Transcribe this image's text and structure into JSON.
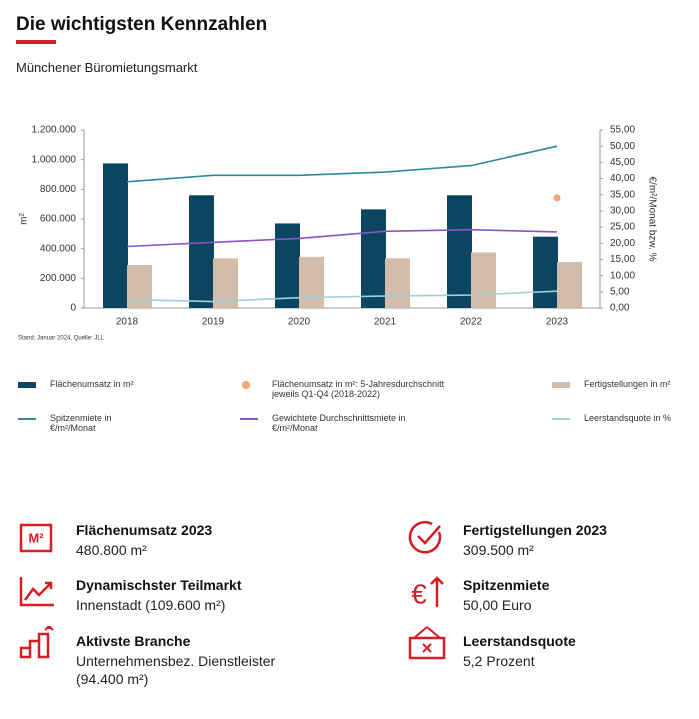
{
  "header": {
    "title": "Die wichtigsten Kennzahlen",
    "subtitle": "Münchener Büromietungsmarkt"
  },
  "chart_data": {
    "type": "bar",
    "categories": [
      "2018",
      "2019",
      "2020",
      "2021",
      "2022",
      "2023"
    ],
    "ylabel": "m²",
    "y2label": "€/m²/Monat bzw. %",
    "note": "Stand: Januar 2024, Quelle: JLL",
    "ylim": [
      0,
      1200000
    ],
    "yticks": [
      {
        "value": 0,
        "label": "0"
      },
      {
        "value": 200000,
        "label": "200.000"
      },
      {
        "value": 400000,
        "label": "400.000"
      },
      {
        "value": 600000,
        "label": "600.000"
      },
      {
        "value": 800000,
        "label": "800.000"
      },
      {
        "value": 1000000,
        "label": "1.000.000"
      },
      {
        "value": 1200000,
        "label": "1.200.000"
      }
    ],
    "y2lim": [
      0,
      55
    ],
    "y2ticks": [
      {
        "value": 0,
        "label": "0,00"
      },
      {
        "value": 5,
        "label": "5,00"
      },
      {
        "value": 10,
        "label": "10,00"
      },
      {
        "value": 15,
        "label": "15,00"
      },
      {
        "value": 20,
        "label": "20,00"
      },
      {
        "value": 25,
        "label": "25,00"
      },
      {
        "value": 30,
        "label": "30,00"
      },
      {
        "value": 35,
        "label": "35,00"
      },
      {
        "value": 40,
        "label": "40,00"
      },
      {
        "value": 45,
        "label": "45,00"
      },
      {
        "value": 50,
        "label": "50,00"
      },
      {
        "value": 55,
        "label": "55,00"
      }
    ],
    "series": [
      {
        "name": "Flächenumsatz  in m²",
        "type": "bar",
        "color": "#0c4560",
        "values": [
          975000,
          760000,
          570000,
          665000,
          760000,
          480800
        ]
      },
      {
        "name": "Flächenumsatz  in m²: 5-Jahresdurchschnitt jeweils Q1-Q4 (2018-2022)",
        "type": "point",
        "color": "#f4a373",
        "values": [
          null,
          null,
          null,
          null,
          null,
          742000
        ]
      },
      {
        "name": "Fertigstellungen  in m²",
        "type": "bar",
        "color": "#d4bcaa",
        "values": [
          290000,
          335000,
          345000,
          335000,
          375000,
          309500
        ]
      },
      {
        "name": "Spitzenmiete  in €/m²/Monat",
        "type": "line",
        "axis": "y2",
        "color": "#2b8aa3",
        "values": [
          39,
          41,
          41,
          42,
          44,
          50
        ]
      },
      {
        "name": "Gewichtete Durchschnittsmiete  in €/m²/Monat",
        "type": "line",
        "axis": "y2",
        "color": "#8c54c4",
        "values": [
          19,
          20.3,
          21.5,
          23.7,
          24.2,
          23.5
        ]
      },
      {
        "name": "Leerstandsquote  in %",
        "type": "line",
        "axis": "y2",
        "color": "#9fcfdc",
        "values": [
          2.6,
          2.0,
          3.2,
          3.7,
          4.0,
          5.2
        ]
      }
    ]
  },
  "kpis": [
    {
      "title": "Flächenumsatz 2023",
      "value": "480.800  m²"
    },
    {
      "title": "Fertigstellungen 2023",
      "value": "309.500  m²"
    },
    {
      "title": "Dynamischster Teilmarkt",
      "value": "Innenstadt (109.600 m²)"
    },
    {
      "title": "Spitzenmiete",
      "value": "50,00 Euro"
    },
    {
      "title": "Aktivste Branche",
      "value": "Unternehmensbez. Dienstleister (94.400 m²)"
    },
    {
      "title": "Leerstandsquote",
      "value": "5,2 Prozent"
    }
  ]
}
